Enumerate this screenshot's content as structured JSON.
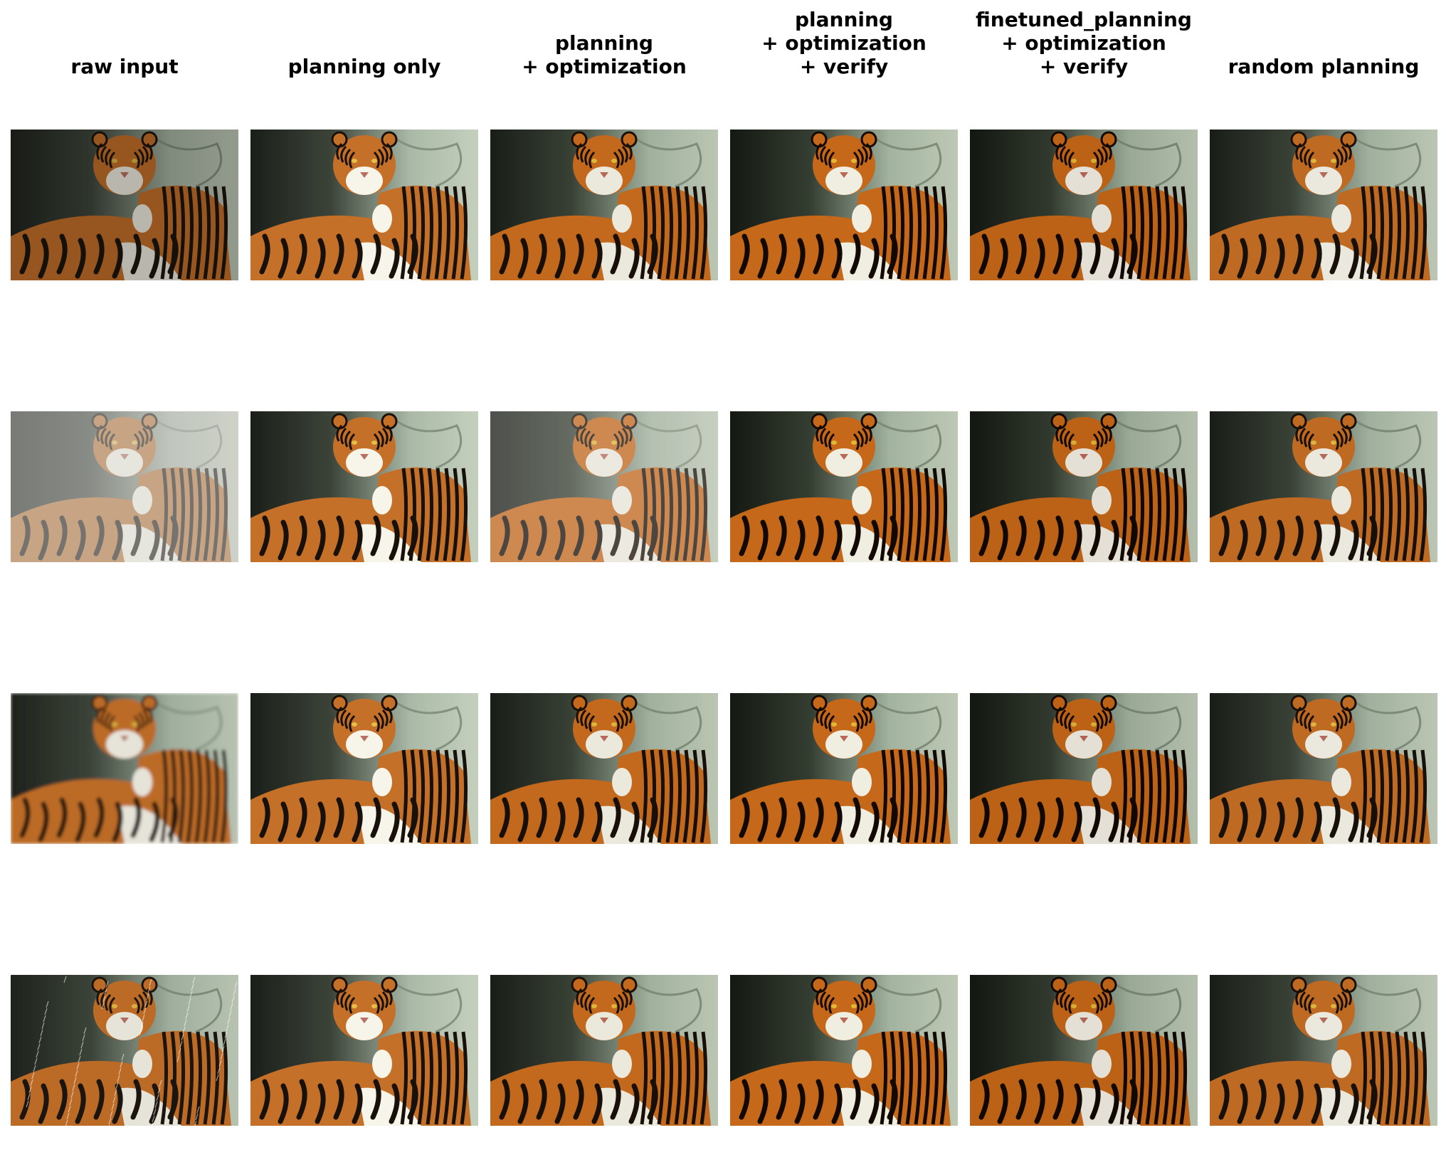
{
  "columns": [
    {
      "lines": [
        "raw input"
      ],
      "adjust": {
        "brightness": 0.95,
        "contrast": 1.0,
        "saturate": 0.95
      }
    },
    {
      "lines": [
        "planning only"
      ],
      "adjust": {
        "brightness": 1.05,
        "contrast": 1.05,
        "saturate": 0.9
      }
    },
    {
      "lines": [
        "planning",
        "+ optimization"
      ],
      "adjust": {
        "brightness": 1.0,
        "contrast": 1.05,
        "saturate": 1.0
      }
    },
    {
      "lines": [
        "planning",
        "+ optimization",
        "+ verify"
      ],
      "adjust": {
        "brightness": 1.0,
        "contrast": 1.1,
        "saturate": 1.0
      }
    },
    {
      "lines": [
        "finetuned_planning",
        "+ optimization",
        "+ verify"
      ],
      "adjust": {
        "brightness": 0.95,
        "contrast": 1.1,
        "saturate": 1.0
      }
    },
    {
      "lines": [
        "random planning"
      ],
      "adjust": {
        "brightness": 1.0,
        "contrast": 1.05,
        "saturate": 0.95
      }
    }
  ],
  "rows": [
    {
      "degradation": "dark",
      "haze": 0.0,
      "rain": false
    },
    {
      "degradation": "haze",
      "haze": 0.45,
      "rain": false
    },
    {
      "degradation": "blur",
      "haze": 0.0,
      "rain": false
    },
    {
      "degradation": "rain",
      "haze": 0.0,
      "rain": true
    }
  ],
  "colors": {
    "tiger_orange": "#c06a22",
    "tiger_stripe": "#1c140e",
    "background_rock": "#9fae9c",
    "background_dark": "#1e221c",
    "fur_white": "#e6e3d8"
  }
}
